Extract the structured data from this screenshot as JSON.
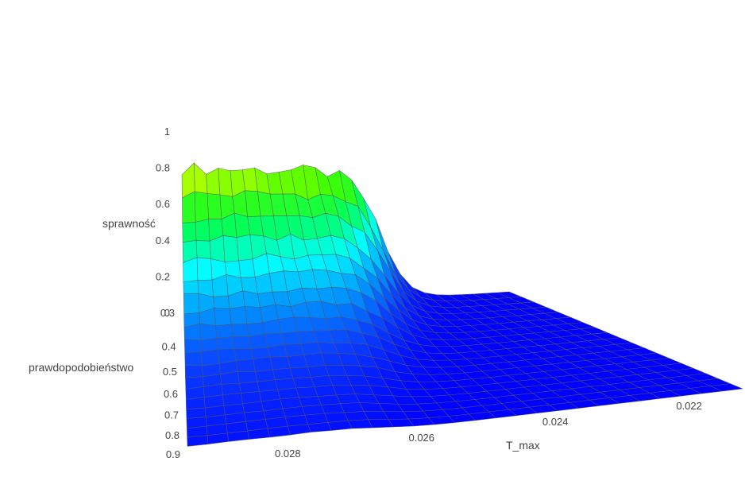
{
  "chart_data": {
    "type": "surface3d",
    "title": "",
    "axes": {
      "x": {
        "label": "T_max",
        "range": [
          0.0295,
          0.0212
        ],
        "ticks": [
          0.028,
          0.026,
          0.024,
          0.022
        ],
        "tick_labels": [
          "0.028",
          "0.026",
          "0.024",
          "0.022"
        ]
      },
      "y": {
        "label": "prawdopodobieństwo",
        "range": [
          0.3,
          0.9
        ],
        "ticks": [
          0.3,
          0.4,
          0.5,
          0.6,
          0.7,
          0.8,
          0.9
        ],
        "tick_labels": [
          "0.3",
          "0.4",
          "0.5",
          "0.6",
          "0.7",
          "0.8",
          "0.9"
        ]
      },
      "z": {
        "label": "sprawność",
        "range": [
          0,
          1
        ],
        "ticks": [
          0,
          0.2,
          0.4,
          0.6,
          0.8,
          1
        ],
        "tick_labels": [
          "0",
          "0.2",
          "0.4",
          "0.6",
          "0.8",
          "1"
        ]
      }
    },
    "grid": {
      "x_count": 28,
      "y_count": 20
    },
    "surface_description_values": {
      "max_efficiency_at": {
        "T_max": 0.0295,
        "prawdopodobienstwo": 0.9,
        "sprawnosc": 1.0
      },
      "plateau_low": {
        "sprawnosc": 0.0
      }
    },
    "colorscale": [
      [
        0.0,
        "#0000ff"
      ],
      [
        0.15,
        "#0a3cff"
      ],
      [
        0.3,
        "#00a0ff"
      ],
      [
        0.42,
        "#00ffff"
      ],
      [
        0.55,
        "#00ff60"
      ],
      [
        0.68,
        "#40ff00"
      ],
      [
        0.8,
        "#ffff00"
      ],
      [
        0.9,
        "#ff9900"
      ],
      [
        1.0,
        "#ff2200"
      ]
    ],
    "grid_line_color": "#555555"
  }
}
